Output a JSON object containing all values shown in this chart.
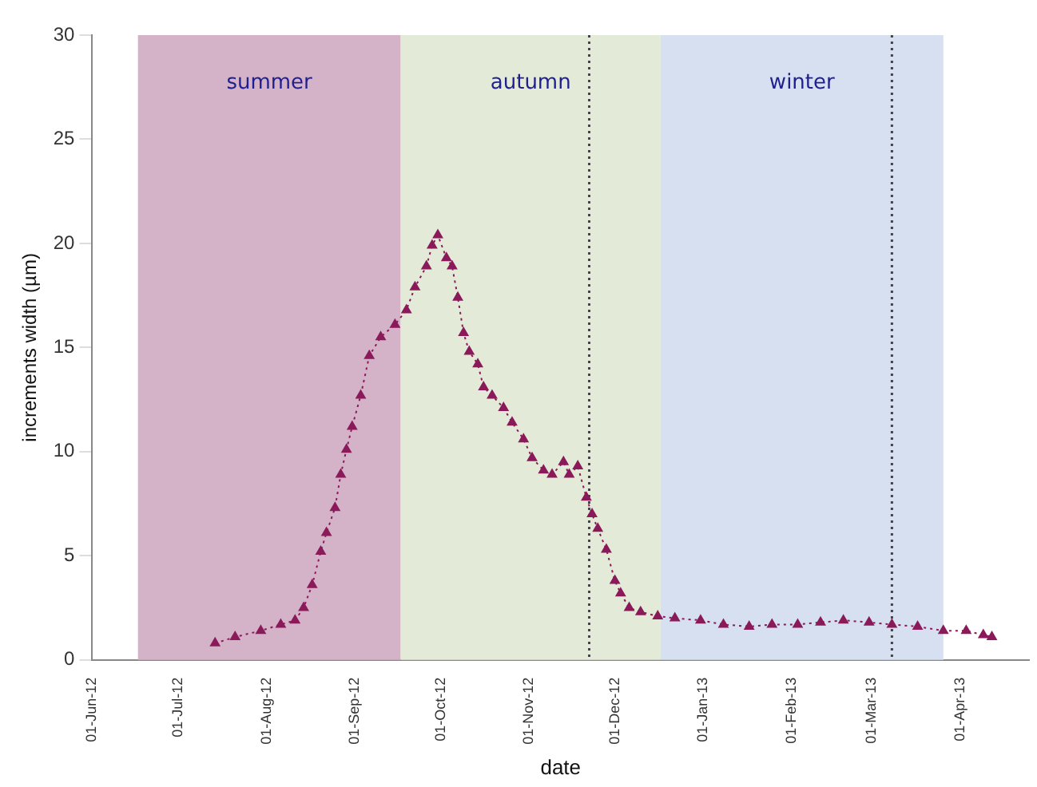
{
  "chart_data": {
    "type": "line",
    "xlabel": "date",
    "ylabel": "increments width (µm)",
    "x": [
      "2012-07-14",
      "2012-07-21",
      "2012-07-30",
      "2012-08-06",
      "2012-08-11",
      "2012-08-14",
      "2012-08-17",
      "2012-08-20",
      "2012-08-22",
      "2012-08-25",
      "2012-08-27",
      "2012-08-29",
      "2012-08-31",
      "2012-09-03",
      "2012-09-06",
      "2012-09-10",
      "2012-09-15",
      "2012-09-19",
      "2012-09-22",
      "2012-09-26",
      "2012-09-28",
      "2012-09-30",
      "2012-10-03",
      "2012-10-05",
      "2012-10-07",
      "2012-10-09",
      "2012-10-11",
      "2012-10-14",
      "2012-10-16",
      "2012-10-19",
      "2012-10-23",
      "2012-10-26",
      "2012-10-30",
      "2012-11-02",
      "2012-11-06",
      "2012-11-09",
      "2012-11-13",
      "2012-11-15",
      "2012-11-18",
      "2012-11-21",
      "2012-11-23",
      "2012-11-25",
      "2012-11-28",
      "2012-12-01",
      "2012-12-03",
      "2012-12-06",
      "2012-12-10",
      "2012-12-16",
      "2012-12-22",
      "2012-12-31",
      "2013-01-08",
      "2013-01-17",
      "2013-01-25",
      "2013-02-03",
      "2013-02-11",
      "2013-02-19",
      "2013-02-28",
      "2013-03-08",
      "2013-03-17",
      "2013-03-26",
      "2013-04-03",
      "2013-04-09",
      "2013-04-12"
    ],
    "series": [
      {
        "color": "#8b1a5a",
        "values": [
          0.8,
          1.1,
          1.4,
          1.7,
          1.9,
          2.5,
          3.6,
          5.2,
          6.1,
          7.3,
          8.9,
          10.1,
          11.2,
          12.7,
          14.6,
          15.5,
          16.1,
          16.8,
          17.9,
          18.9,
          19.9,
          20.4,
          19.3,
          18.9,
          17.4,
          15.7,
          14.8,
          14.2,
          13.1,
          12.7,
          12.1,
          11.4,
          10.6,
          9.7,
          9.1,
          8.9,
          9.5,
          8.9,
          9.3,
          7.8,
          7.0,
          6.3,
          5.3,
          3.8,
          3.2,
          2.5,
          2.3,
          2.1,
          2.0,
          1.9,
          1.7,
          1.6,
          1.7,
          1.7,
          1.8,
          1.9,
          1.8,
          1.7,
          1.6,
          1.4,
          1.4,
          1.2,
          1.1
        ]
      }
    ],
    "marker": "triangle",
    "line_style": "dotted",
    "grid": false,
    "legend": false,
    "xlim": [
      "2012-06-01",
      "2013-04-25"
    ],
    "xticks": [
      {
        "value": "2012-06-01",
        "label": "01-Jun-12"
      },
      {
        "value": "2012-07-01",
        "label": "01-Jul-12"
      },
      {
        "value": "2012-08-01",
        "label": "01-Aug-12"
      },
      {
        "value": "2012-09-01",
        "label": "01-Sep-12"
      },
      {
        "value": "2012-10-01",
        "label": "01-Oct-12"
      },
      {
        "value": "2012-11-01",
        "label": "01-Nov-12"
      },
      {
        "value": "2012-12-01",
        "label": "01-Dec-12"
      },
      {
        "value": "2013-01-01",
        "label": "01-Jan-13"
      },
      {
        "value": "2013-02-01",
        "label": "01-Feb-13"
      },
      {
        "value": "2013-03-01",
        "label": "01-Mar-13"
      },
      {
        "value": "2013-04-01",
        "label": "01-Apr-13"
      }
    ],
    "ylim": [
      0,
      30
    ],
    "yticks": [
      0,
      5,
      10,
      15,
      20,
      25,
      30
    ],
    "bands": [
      {
        "axis": "x",
        "from": "2012-06-17",
        "to": "2012-09-17",
        "label": "summer",
        "color": "#d4b3c8"
      },
      {
        "axis": "x",
        "from": "2012-09-17",
        "to": "2012-12-17",
        "label": "autumn",
        "color": "#e3ead8"
      },
      {
        "axis": "x",
        "from": "2012-12-17",
        "to": "2013-03-26",
        "label": "winter",
        "color": "#d6e0f0"
      }
    ],
    "ref_lines": [
      {
        "axis": "x",
        "value": "2012-11-22",
        "line_style": "dotted",
        "color": "#444444"
      },
      {
        "axis": "x",
        "value": "2013-03-08",
        "line_style": "dotted",
        "color": "#444444"
      }
    ]
  }
}
